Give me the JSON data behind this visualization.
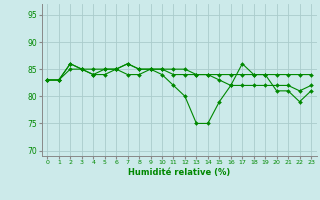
{
  "title": "",
  "xlabel": "Humidité relative (%)",
  "ylabel": "",
  "background_color": "#cceaea",
  "grid_color": "#aacccc",
  "line_color": "#008800",
  "marker_color": "#008800",
  "xlim": [
    -0.5,
    23.5
  ],
  "ylim": [
    69,
    97
  ],
  "yticks": [
    70,
    75,
    80,
    85,
    90,
    95
  ],
  "xtick_labels": [
    "0",
    "1",
    "2",
    "3",
    "4",
    "5",
    "6",
    "7",
    "8",
    "9",
    "10",
    "11",
    "12",
    "13",
    "14",
    "15",
    "16",
    "17",
    "18",
    "19",
    "20",
    "21",
    "22",
    "23"
  ],
  "series1": [
    83,
    83,
    86,
    85,
    85,
    85,
    85,
    86,
    85,
    85,
    85,
    84,
    84,
    84,
    84,
    84,
    84,
    84,
    84,
    84,
    84,
    84,
    84,
    84
  ],
  "series2": [
    83,
    83,
    86,
    85,
    84,
    85,
    85,
    86,
    85,
    85,
    84,
    82,
    80,
    75,
    75,
    79,
    82,
    86,
    84,
    84,
    81,
    81,
    79,
    81
  ],
  "series3": [
    83,
    83,
    85,
    85,
    84,
    84,
    85,
    84,
    84,
    85,
    85,
    85,
    85,
    84,
    84,
    83,
    82,
    82,
    82,
    82,
    82,
    82,
    81,
    82
  ]
}
